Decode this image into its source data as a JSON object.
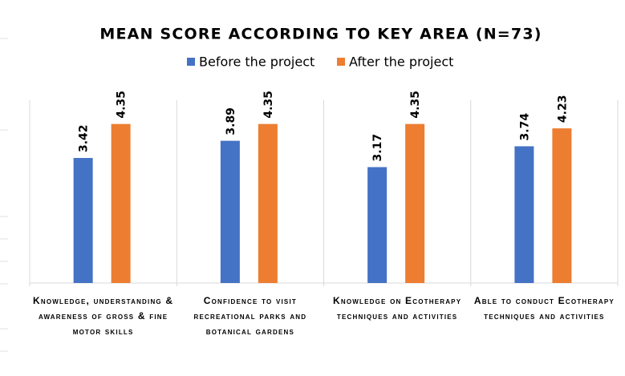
{
  "chart_data": {
    "type": "bar",
    "title": "MEAN SCORE ACCORDING TO KEY AREA (N=73)",
    "categories": [
      "Knowledge, understanding & awareness of gross & fine motor skills",
      "Confidence to visit recreational parks and botanical gardens",
      "Knowledge on Ecotherapy techniques and activities",
      "Able to conduct Ecotherapy techniques and activities"
    ],
    "series": [
      {
        "name": "Before the project",
        "color": "#4472c4",
        "values": [
          3.42,
          3.89,
          3.17,
          3.74
        ]
      },
      {
        "name": "After the project",
        "color": "#ed7d31",
        "values": [
          4.35,
          4.35,
          4.35,
          4.23
        ]
      }
    ],
    "ylim": [
      0,
      5
    ],
    "legend": "top"
  }
}
